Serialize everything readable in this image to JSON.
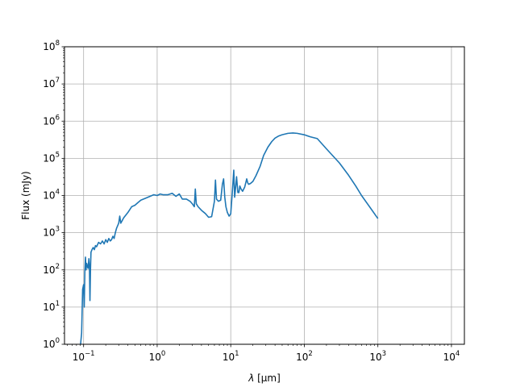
{
  "chart_data": {
    "type": "line",
    "title": "",
    "xlabel_symbol": "λ",
    "xlabel_unit": " [μm]",
    "ylabel": "Flux (mJy)",
    "xscale": "log",
    "yscale": "log",
    "xlim": [
      0.055,
      15000
    ],
    "ylim": [
      1,
      100000000
    ],
    "grid": true,
    "legend": "none",
    "xticks": [
      {
        "value": 0.1,
        "base": "10",
        "exp": "−1"
      },
      {
        "value": 1,
        "base": "10",
        "exp": "0"
      },
      {
        "value": 10,
        "base": "10",
        "exp": "1"
      },
      {
        "value": 100,
        "base": "10",
        "exp": "2"
      },
      {
        "value": 1000,
        "base": "10",
        "exp": "3"
      },
      {
        "value": 10000,
        "base": "10",
        "exp": "4"
      }
    ],
    "yticks": [
      {
        "value": 1,
        "base": "10",
        "exp": "0"
      },
      {
        "value": 10,
        "base": "10",
        "exp": "1"
      },
      {
        "value": 100,
        "base": "10",
        "exp": "2"
      },
      {
        "value": 1000,
        "base": "10",
        "exp": "3"
      },
      {
        "value": 10000,
        "base": "10",
        "exp": "4"
      },
      {
        "value": 100000,
        "base": "10",
        "exp": "5"
      },
      {
        "value": 1000000,
        "base": "10",
        "exp": "6"
      },
      {
        "value": 10000000,
        "base": "10",
        "exp": "7"
      },
      {
        "value": 100000000,
        "base": "10",
        "exp": "8"
      }
    ],
    "series": [
      {
        "color": "#1f77b4",
        "x": [
          0.091,
          0.094,
          0.097,
          0.1,
          0.102,
          0.104,
          0.106,
          0.108,
          0.11,
          0.112,
          0.115,
          0.118,
          0.12,
          0.122,
          0.124,
          0.126,
          0.13,
          0.135,
          0.14,
          0.145,
          0.15,
          0.16,
          0.17,
          0.18,
          0.19,
          0.2,
          0.21,
          0.22,
          0.23,
          0.24,
          0.25,
          0.26,
          0.27,
          0.28,
          0.3,
          0.31,
          0.32,
          0.35,
          0.4,
          0.45,
          0.5,
          0.55,
          0.6,
          0.7,
          0.8,
          0.9,
          1.0,
          1.1,
          1.2,
          1.4,
          1.6,
          1.8,
          2.0,
          2.2,
          2.5,
          2.8,
          3.0,
          3.2,
          3.3,
          3.4,
          3.6,
          4.0,
          4.5,
          5.0,
          5.5,
          6.0,
          6.2,
          6.4,
          6.8,
          7.3,
          7.7,
          8.0,
          8.3,
          8.6,
          9.0,
          9.5,
          10.0,
          10.5,
          11.0,
          11.3,
          11.6,
          12.0,
          12.5,
          12.9,
          13.3,
          13.8,
          14.5,
          15.5,
          16.5,
          17.0,
          17.5,
          18.5,
          20,
          22,
          25,
          28,
          32,
          36,
          40,
          45,
          50,
          60,
          70,
          80,
          100,
          120,
          150,
          200,
          300,
          400,
          500,
          600,
          800,
          1000
        ],
        "y": [
          1.0,
          2.0,
          30,
          40,
          10,
          90,
          220,
          100,
          150,
          130,
          110,
          200,
          130,
          15,
          100,
          300,
          350,
          400,
          350,
          450,
          420,
          550,
          500,
          600,
          500,
          650,
          550,
          700,
          600,
          650,
          800,
          700,
          1000,
          1300,
          1800,
          2800,
          1800,
          2500,
          3500,
          5000,
          5500,
          6500,
          7500,
          8500,
          9500,
          10500,
          10000,
          11000,
          10500,
          10500,
          11500,
          9500,
          11000,
          8000,
          8000,
          7000,
          6000,
          5000,
          15000,
          6000,
          5000,
          4000,
          3300,
          2600,
          2700,
          7000,
          26000,
          8000,
          7000,
          7500,
          20000,
          28000,
          9000,
          5000,
          3500,
          2800,
          3200,
          12000,
          48000,
          9000,
          15000,
          32000,
          12000,
          12000,
          18000,
          15000,
          13000,
          17000,
          28000,
          22000,
          20000,
          21000,
          24000,
          34000,
          60000,
          120000,
          200000,
          280000,
          350000,
          400000,
          430000,
          470000,
          480000,
          470000,
          430000,
          380000,
          340000,
          180000,
          75000,
          35000,
          18000,
          10000,
          4500,
          2400
        ]
      }
    ]
  }
}
